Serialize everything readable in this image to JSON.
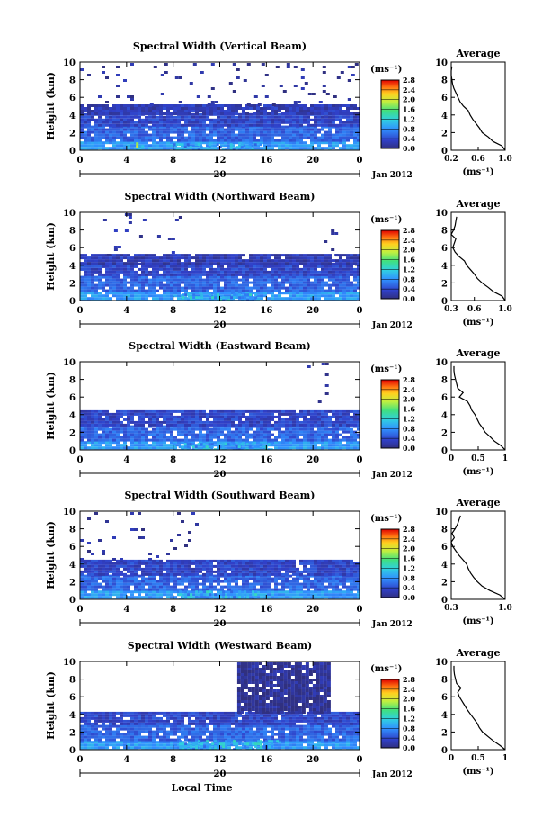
{
  "chart_data": [
    {
      "type": "heatmap",
      "title": "Spectral Width (Vertical Beam)",
      "ylabel": "Height (km)",
      "xticks": [
        "0",
        "4",
        "8",
        "12",
        "16",
        "20",
        "0"
      ],
      "yticks": [
        "0",
        "2",
        "4",
        "6",
        "8",
        "10"
      ],
      "xlim": [
        0,
        24
      ],
      "ylim": [
        0,
        10
      ],
      "day_label": "20",
      "date_label": "Jan 2012",
      "colorbar": {
        "unit": "(ms⁻¹)",
        "ticks": [
          "0.0",
          "0.4",
          "0.8",
          "1.2",
          "1.6",
          "2.0",
          "2.4",
          "2.8"
        ],
        "range": [
          0,
          2.8
        ]
      },
      "layers": [
        {
          "x0": 0.0,
          "x1": 24.0,
          "z0": 0.0,
          "z1": 1.0,
          "value": 0.85
        },
        {
          "x0": 0.0,
          "x1": 24.0,
          "z0": 1.0,
          "z1": 2.8,
          "value": 0.55
        },
        {
          "x0": 0.0,
          "x1": 24.0,
          "z0": 2.8,
          "z1": 4.2,
          "value": 0.35
        },
        {
          "x0": 0.0,
          "x1": 24.0,
          "z0": 4.2,
          "z1": 5.2,
          "value": 0.25
        },
        {
          "x0": 0.0,
          "x1": 4.5,
          "z0": 5.2,
          "z1": 9.9,
          "value": 0.15
        },
        {
          "x0": 6.0,
          "x1": 24.0,
          "z0": 5.2,
          "z1": 9.9,
          "value": 0.1
        }
      ],
      "hotspots": [
        {
          "x0": 4.8,
          "x1": 5.6,
          "z0": 0.0,
          "z1": 0.9,
          "value": 1.8
        },
        {
          "x0": 8.0,
          "x1": 15.5,
          "z0": 0.0,
          "z1": 0.8,
          "value": 1.0
        }
      ],
      "average_profile": {
        "title": "Average",
        "unit": "(ms⁻¹)",
        "xticks": [
          "0.2",
          "0.6",
          "1.0"
        ],
        "xlim": [
          0.2,
          1.0
        ],
        "yticks": [
          "0",
          "2",
          "4",
          "6",
          "8",
          "10"
        ],
        "ylim": [
          0,
          10
        ],
        "height": [
          0.0,
          0.5,
          1.0,
          1.5,
          2.0,
          2.5,
          3.0,
          3.5,
          4.0,
          4.5,
          5.0,
          5.5,
          6.0,
          6.5,
          7.0,
          7.5,
          8.0,
          8.5,
          9.0,
          9.5
        ],
        "value": [
          1.0,
          0.95,
          0.82,
          0.75,
          0.66,
          0.62,
          0.57,
          0.52,
          0.48,
          0.45,
          0.38,
          0.33,
          0.3,
          0.27,
          0.24,
          0.22,
          0.21,
          0.2,
          0.2,
          0.21
        ]
      }
    },
    {
      "type": "heatmap",
      "title": "Spectral Width (Northward Beam)",
      "ylabel": "Height (km)",
      "xticks": [
        "0",
        "4",
        "8",
        "12",
        "16",
        "20",
        "0"
      ],
      "yticks": [
        "0",
        "2",
        "4",
        "6",
        "8",
        "10"
      ],
      "xlim": [
        0,
        24
      ],
      "ylim": [
        0,
        10
      ],
      "day_label": "20",
      "date_label": "Jan 2012",
      "colorbar": {
        "unit": "(ms⁻¹)",
        "ticks": [
          "0.0",
          "0.4",
          "0.8",
          "1.2",
          "1.6",
          "2.0",
          "2.4",
          "2.8"
        ],
        "range": [
          0,
          2.8
        ]
      },
      "layers": [
        {
          "x0": 0.0,
          "x1": 24.0,
          "z0": 0.0,
          "z1": 1.0,
          "value": 0.85
        },
        {
          "x0": 0.0,
          "x1": 24.0,
          "z0": 1.0,
          "z1": 2.8,
          "value": 0.55
        },
        {
          "x0": 0.0,
          "x1": 24.0,
          "z0": 2.8,
          "z1": 4.3,
          "value": 0.35
        },
        {
          "x0": 0.0,
          "x1": 24.0,
          "z0": 4.3,
          "z1": 5.3,
          "value": 0.25
        },
        {
          "x0": 2.0,
          "x1": 8.5,
          "z0": 5.3,
          "z1": 9.9,
          "value": 0.15
        },
        {
          "x0": 20.0,
          "x1": 22.0,
          "z0": 5.3,
          "z1": 9.9,
          "value": 0.1
        }
      ],
      "hotspots": [
        {
          "x0": 8.5,
          "x1": 15.0,
          "z0": 0.0,
          "z1": 0.8,
          "value": 1.1
        }
      ],
      "average_profile": {
        "title": "Average",
        "unit": "(ms⁻¹)",
        "xticks": [
          "0.3",
          "0.6",
          "1.0"
        ],
        "xlim": [
          0.3,
          1.0
        ],
        "yticks": [
          "0",
          "2",
          "4",
          "6",
          "8",
          "10"
        ],
        "ylim": [
          0,
          10
        ],
        "height": [
          0.0,
          0.5,
          1.0,
          1.5,
          2.0,
          2.5,
          3.0,
          3.5,
          4.0,
          4.5,
          5.0,
          5.5,
          6.0,
          6.5,
          7.0,
          7.5,
          8.0,
          8.5,
          9.0,
          9.5
        ],
        "value": [
          1.0,
          0.96,
          0.85,
          0.78,
          0.7,
          0.64,
          0.6,
          0.55,
          0.5,
          0.47,
          0.4,
          0.35,
          0.32,
          0.34,
          0.36,
          0.3,
          0.33,
          0.35,
          0.36,
          0.37
        ]
      }
    },
    {
      "type": "heatmap",
      "title": "Spectral Width (Eastward Beam)",
      "ylabel": "Height (km)",
      "xticks": [
        "0",
        "4",
        "8",
        "12",
        "16",
        "20",
        "0"
      ],
      "yticks": [
        "0",
        "2",
        "4",
        "6",
        "8",
        "10"
      ],
      "xlim": [
        0,
        24
      ],
      "ylim": [
        0,
        10
      ],
      "day_label": "20",
      "date_label": "Jan 2012",
      "colorbar": {
        "unit": "(ms⁻¹)",
        "ticks": [
          "0.0",
          "0.4",
          "0.8",
          "1.2",
          "1.6",
          "2.0",
          "2.4",
          "2.8"
        ],
        "range": [
          0,
          2.8
        ]
      },
      "layers": [
        {
          "x0": 0.0,
          "x1": 24.0,
          "z0": 0.0,
          "z1": 1.0,
          "value": 0.85
        },
        {
          "x0": 0.0,
          "x1": 24.0,
          "z0": 1.0,
          "z1": 2.8,
          "value": 0.55
        },
        {
          "x0": 0.0,
          "x1": 24.0,
          "z0": 2.8,
          "z1": 4.5,
          "value": 0.35
        },
        {
          "x0": 19.5,
          "x1": 21.5,
          "z0": 4.5,
          "z1": 9.9,
          "value": 0.12
        }
      ],
      "hotspots": [
        {
          "x0": 8.0,
          "x1": 16.5,
          "z0": 0.0,
          "z1": 0.8,
          "value": 1.1
        }
      ],
      "average_profile": {
        "title": "Average",
        "unit": "(ms⁻¹)",
        "xticks": [
          "0",
          "0.5",
          "1"
        ],
        "xlim": [
          0,
          1.0
        ],
        "yticks": [
          "0",
          "2",
          "4",
          "6",
          "8",
          "10"
        ],
        "ylim": [
          0,
          10
        ],
        "height": [
          0.0,
          0.5,
          1.0,
          1.5,
          2.0,
          2.5,
          3.0,
          3.5,
          4.0,
          4.5,
          5.0,
          5.5,
          6.0,
          6.5,
          7.0,
          7.5,
          8.0,
          8.5,
          9.0,
          9.5
        ],
        "value": [
          1.0,
          0.92,
          0.8,
          0.72,
          0.63,
          0.58,
          0.52,
          0.48,
          0.44,
          0.38,
          0.35,
          0.3,
          0.15,
          0.22,
          0.12,
          0.1,
          0.08,
          0.06,
          0.05,
          0.05
        ]
      }
    },
    {
      "type": "heatmap",
      "title": "Spectral Width (Southward Beam)",
      "ylabel": "Height (km)",
      "xticks": [
        "0",
        "4",
        "8",
        "12",
        "16",
        "20",
        "0"
      ],
      "yticks": [
        "0",
        "2",
        "4",
        "6",
        "8",
        "10"
      ],
      "xlim": [
        0,
        24
      ],
      "ylim": [
        0,
        10
      ],
      "day_label": "20",
      "date_label": "Jan 2012",
      "colorbar": {
        "unit": "(ms⁻¹)",
        "ticks": [
          "0.0",
          "0.4",
          "0.8",
          "1.2",
          "1.6",
          "2.0",
          "2.4",
          "2.8"
        ],
        "range": [
          0,
          2.8
        ]
      },
      "layers": [
        {
          "x0": 0.0,
          "x1": 24.0,
          "z0": 0.0,
          "z1": 1.0,
          "value": 0.85
        },
        {
          "x0": 0.0,
          "x1": 24.0,
          "z0": 1.0,
          "z1": 2.8,
          "value": 0.55
        },
        {
          "x0": 0.0,
          "x1": 24.0,
          "z0": 2.8,
          "z1": 4.5,
          "value": 0.35
        },
        {
          "x0": 0.0,
          "x1": 10.0,
          "z0": 4.5,
          "z1": 9.9,
          "value": 0.12
        }
      ],
      "hotspots": [
        {
          "x0": 8.5,
          "x1": 15.0,
          "z0": 0.0,
          "z1": 1.0,
          "value": 1.1
        }
      ],
      "average_profile": {
        "title": "Average",
        "unit": "(ms⁻¹)",
        "xticks": [
          "0.3",
          "1.0"
        ],
        "xlim": [
          0.3,
          1.0
        ],
        "yticks": [
          "0",
          "2",
          "4",
          "6",
          "8",
          "10"
        ],
        "ylim": [
          0,
          10
        ],
        "height": [
          0.0,
          0.5,
          1.0,
          1.5,
          2.0,
          2.5,
          3.0,
          3.5,
          4.0,
          4.5,
          5.0,
          5.5,
          6.0,
          6.5,
          7.0,
          7.5,
          8.0,
          8.5,
          9.0,
          9.5
        ],
        "value": [
          1.0,
          0.93,
          0.8,
          0.7,
          0.64,
          0.59,
          0.55,
          0.52,
          0.5,
          0.45,
          0.4,
          0.36,
          0.32,
          0.3,
          0.34,
          0.31,
          0.35,
          0.38,
          0.4,
          0.42
        ]
      }
    },
    {
      "type": "heatmap",
      "title": "Spectral Width (Westward Beam)",
      "ylabel": "Height (km)",
      "xticks": [
        "0",
        "4",
        "8",
        "12",
        "16",
        "20",
        "0"
      ],
      "yticks": [
        "0",
        "2",
        "4",
        "6",
        "8",
        "10"
      ],
      "xlim": [
        0,
        24
      ],
      "ylim": [
        0,
        10
      ],
      "day_label": "20",
      "date_label": "Jan 2012",
      "xlabel": "Local Time",
      "colorbar": {
        "unit": "(ms⁻¹)",
        "ticks": [
          "0.0",
          "0.4",
          "0.8",
          "1.2",
          "1.6",
          "2.0",
          "2.4",
          "2.8"
        ],
        "range": [
          0,
          2.8
        ]
      },
      "layers": [
        {
          "x0": 0.0,
          "x1": 24.0,
          "z0": 0.0,
          "z1": 1.0,
          "value": 0.85
        },
        {
          "x0": 0.0,
          "x1": 24.0,
          "z0": 1.0,
          "z1": 2.8,
          "value": 0.55
        },
        {
          "x0": 0.0,
          "x1": 24.0,
          "z0": 2.8,
          "z1": 4.3,
          "value": 0.35
        },
        {
          "x0": 13.5,
          "x1": 21.5,
          "z0": 4.3,
          "z1": 9.9,
          "value": 0.1
        }
      ],
      "hotspots": [
        {
          "x0": 8.5,
          "x1": 17.0,
          "z0": 0.0,
          "z1": 1.1,
          "value": 1.1
        }
      ],
      "average_profile": {
        "title": "Average",
        "unit": "(ms⁻¹)",
        "xticks": [
          "0",
          "0.5",
          "1"
        ],
        "xlim": [
          0,
          1.0
        ],
        "yticks": [
          "0",
          "2",
          "4",
          "6",
          "8",
          "10"
        ],
        "ylim": [
          0,
          10
        ],
        "height": [
          0.0,
          0.5,
          1.0,
          1.5,
          2.0,
          2.5,
          3.0,
          3.5,
          4.0,
          4.5,
          5.0,
          5.5,
          6.0,
          6.5,
          7.0,
          7.5,
          8.0,
          8.5,
          9.0,
          9.5
        ],
        "value": [
          1.0,
          0.9,
          0.78,
          0.68,
          0.58,
          0.52,
          0.48,
          0.42,
          0.36,
          0.3,
          0.25,
          0.2,
          0.15,
          0.12,
          0.18,
          0.1,
          0.08,
          0.06,
          0.05,
          0.05
        ]
      }
    }
  ]
}
